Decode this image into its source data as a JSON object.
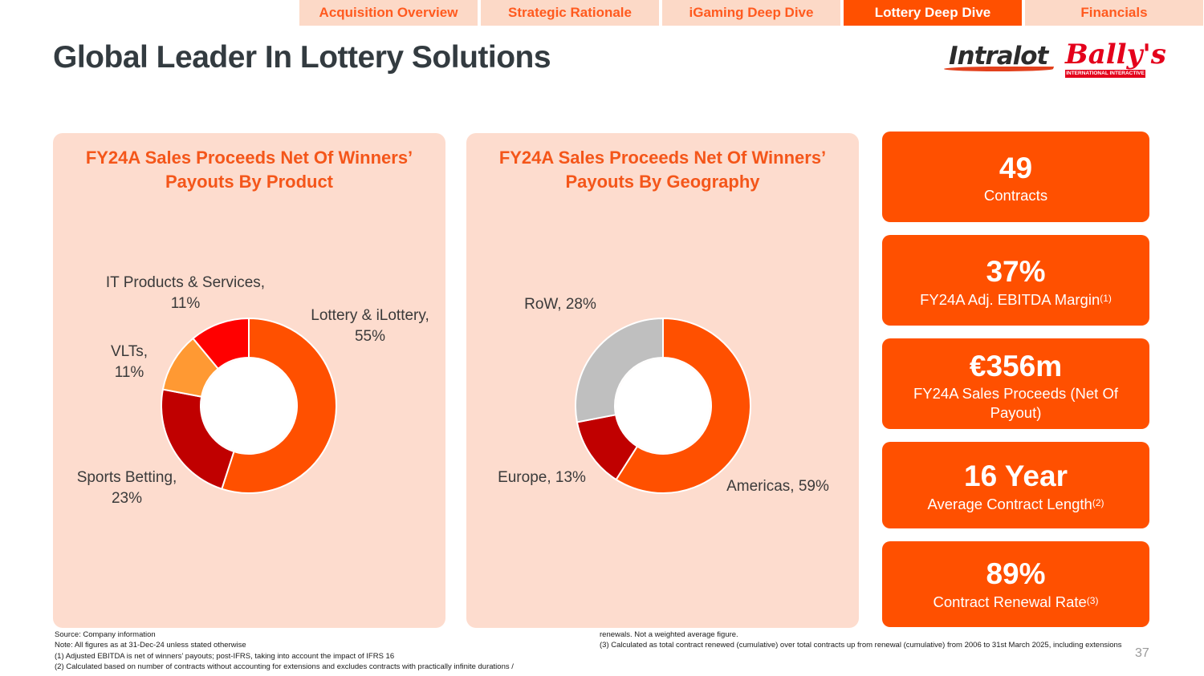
{
  "nav": {
    "tabs": [
      "Acquisition Overview",
      "Strategic Rationale",
      "iGaming Deep Dive",
      "Lottery Deep Dive",
      "Financials"
    ],
    "active": "Lottery Deep Dive"
  },
  "title": "Global Leader In Lottery Solutions",
  "logos": {
    "intralot": "Intralot",
    "ballys": "Bally's",
    "ballys_sub": "INTERNATIONAL INTERACTIVE"
  },
  "colors": {
    "brand_orange": "#ff5000",
    "panel_bg": "#fddcce",
    "dark_red": "#c00000",
    "light_orange": "#ff9933",
    "red": "#ff0000",
    "grey": "#bfbfbf"
  },
  "chart_data": [
    {
      "type": "pie",
      "variant": "donut",
      "title": "FY24A Sales Proceeds Net Of Winners' Payouts By Product",
      "title_lines": [
        "FY24A Sales Proceeds Net Of Winners’",
        "Payouts By Product"
      ],
      "slices": [
        {
          "name": "Lottery & iLottery",
          "value": 55,
          "label_lines": [
            "Lottery & iLottery,",
            "55%"
          ],
          "color": "#ff5000"
        },
        {
          "name": "Sports Betting",
          "value": 23,
          "label_lines": [
            "Sports Betting,",
            "23%"
          ],
          "color": "#c00000"
        },
        {
          "name": "VLTs",
          "value": 11,
          "label_lines": [
            "VLTs,",
            "11%"
          ],
          "color": "#ff9933"
        },
        {
          "name": "IT Products & Services",
          "value": 11,
          "label_lines": [
            "IT Products & Services,",
            "11%"
          ],
          "color": "#ff0000"
        }
      ]
    },
    {
      "type": "pie",
      "variant": "donut",
      "title": "FY24A Sales Proceeds Net Of Winners' Payouts By Geography",
      "title_lines": [
        "FY24A Sales Proceeds Net Of Winners’",
        "Payouts By Geography"
      ],
      "slices": [
        {
          "name": "Americas",
          "value": 59,
          "label_lines": [
            "Americas, 59%"
          ],
          "color": "#ff5000"
        },
        {
          "name": "Europe",
          "value": 13,
          "label_lines": [
            "Europe, 13%"
          ],
          "color": "#c00000"
        },
        {
          "name": "RoW",
          "value": 28,
          "label_lines": [
            "RoW, 28%"
          ],
          "color": "#bfbfbf"
        }
      ]
    }
  ],
  "kpis": [
    {
      "value": "49",
      "label": "Contracts",
      "sup": ""
    },
    {
      "value": "37%",
      "label": "FY24A Adj. EBITDA Margin",
      "sup": "(1)"
    },
    {
      "value": "€356m",
      "label": "FY24A Sales Proceeds (Net Of Payout)",
      "sup": ""
    },
    {
      "value": "16 Year",
      "label": "Average Contract Length",
      "sup": "(2)"
    },
    {
      "value": "89%",
      "label": "Contract Renewal Rate",
      "sup": "(3)"
    }
  ],
  "footnotes": {
    "left": [
      "Source: Company information",
      "Note: All figures as at 31-Dec-24 unless stated otherwise",
      "(1) Adjusted EBITDA is net of winners’ payouts; post-IFRS, taking into account the impact of IFRS 16",
      "(2) Calculated based on number of contracts without accounting for extensions and excludes contracts with practically infinite durations /"
    ],
    "right": [
      "renewals. Not a weighted average figure.",
      "(3) Calculated as total contract renewed (cumulative) over total contracts up from renewal (cumulative) from 2006 to 31st March 2025, including extensions"
    ]
  },
  "page_number": "37"
}
